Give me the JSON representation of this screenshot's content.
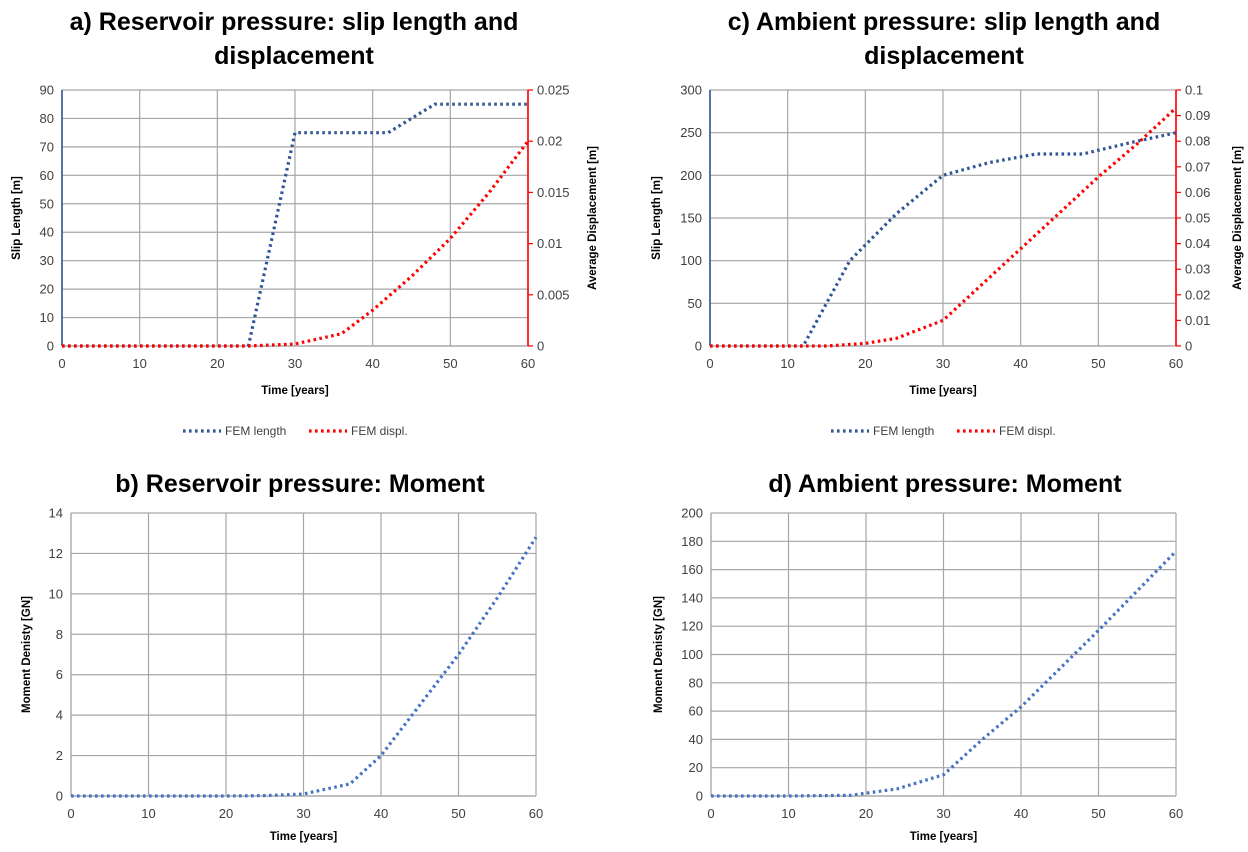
{
  "chart_data": [
    {
      "id": "a",
      "type": "line",
      "title_lines": [
        "a) Reservoir pressure:  slip length and",
        "displacement"
      ],
      "xlabel": "Time [years]",
      "ylabel": "Slip Length [m]",
      "y2label": "Average  Displacement [m]",
      "xlim": [
        0,
        60
      ],
      "ylim": [
        0,
        90
      ],
      "y2lim": [
        0,
        0.025
      ],
      "xticks": [
        "0",
        "10",
        "20",
        "30",
        "40",
        "50",
        "60"
      ],
      "yticks": [
        "0",
        "10",
        "20",
        "30",
        "40",
        "50",
        "60",
        "70",
        "80",
        "90"
      ],
      "y2ticks": [
        "0",
        "0.005",
        "0.01",
        "0.015",
        "0.02",
        "0.025"
      ],
      "grid": true,
      "legend_position": "bottom",
      "series": [
        {
          "name": "FEM length",
          "axis": "left",
          "color": "#2f5597",
          "x": [
            0,
            10,
            20,
            24,
            30,
            36,
            42,
            48,
            54,
            60
          ],
          "y": [
            0,
            0,
            0,
            0,
            75,
            75,
            75,
            85,
            85,
            85
          ]
        },
        {
          "name": "FEM displ.",
          "axis": "right",
          "color": "#ff0000",
          "x": [
            0,
            10,
            20,
            24,
            30,
            36,
            40,
            45,
            50,
            55,
            60
          ],
          "y": [
            0,
            0,
            0,
            0,
            0.0002,
            0.0012,
            0.0035,
            0.0068,
            0.0105,
            0.015,
            0.02
          ]
        }
      ]
    },
    {
      "id": "c",
      "type": "line",
      "title_lines": [
        "c) Ambient pressure: slip length and",
        "displacement"
      ],
      "xlabel": "Time [years]",
      "ylabel": "Slip Length [m]",
      "y2label": "Average  Displacement [m]",
      "xlim": [
        0,
        60
      ],
      "ylim": [
        0,
        300
      ],
      "y2lim": [
        0,
        0.1
      ],
      "xticks": [
        "0",
        "10",
        "20",
        "30",
        "40",
        "50",
        "60"
      ],
      "yticks": [
        "0",
        "50",
        "100",
        "150",
        "200",
        "250",
        "300"
      ],
      "y2ticks": [
        "0",
        "0.01",
        "0.02",
        "0.03",
        "0.04",
        "0.05",
        "0.06",
        "0.07",
        "0.08",
        "0.09",
        "0.1"
      ],
      "grid": true,
      "legend_position": "bottom",
      "series": [
        {
          "name": "FEM length",
          "axis": "left",
          "color": "#2f5597",
          "x": [
            0,
            6,
            12,
            18,
            24,
            30,
            36,
            42,
            48,
            54,
            60
          ],
          "y": [
            0,
            0,
            0,
            100,
            155,
            200,
            215,
            225,
            225,
            238,
            250
          ]
        },
        {
          "name": "FEM displ.",
          "axis": "right",
          "color": "#ff0000",
          "x": [
            0,
            10,
            15,
            20,
            24,
            30,
            35,
            40,
            45,
            50,
            55,
            60
          ],
          "y": [
            0,
            0,
            0,
            0.001,
            0.003,
            0.01,
            0.024,
            0.038,
            0.052,
            0.066,
            0.079,
            0.093
          ]
        }
      ]
    },
    {
      "id": "b",
      "type": "line",
      "title_lines": [
        "b)  Reservoir pressure: Moment"
      ],
      "xlabel": "Time [years]",
      "ylabel": "Moment Denisty [GN]",
      "xlim": [
        0,
        60
      ],
      "ylim": [
        0,
        14
      ],
      "xticks": [
        "0",
        "10",
        "20",
        "30",
        "40",
        "50",
        "60"
      ],
      "yticks": [
        "0",
        "2",
        "4",
        "6",
        "8",
        "10",
        "12",
        "14"
      ],
      "grid": true,
      "series": [
        {
          "color": "#4472c4",
          "x": [
            0,
            10,
            20,
            25,
            30,
            36,
            40,
            45,
            50,
            55,
            60
          ],
          "y": [
            0,
            0,
            0,
            0.02,
            0.1,
            0.6,
            2,
            4.5,
            7,
            9.8,
            12.8
          ]
        }
      ]
    },
    {
      "id": "d",
      "type": "line",
      "title_lines": [
        "d) Ambient pressure: Moment"
      ],
      "xlabel": "Time [years]",
      "ylabel": "Moment Denisty [GN]",
      "xlim": [
        0,
        60
      ],
      "ylim": [
        0,
        200
      ],
      "xticks": [
        "0",
        "10",
        "20",
        "30",
        "40",
        "50",
        "60"
      ],
      "yticks": [
        "0",
        "20",
        "40",
        "60",
        "80",
        "100",
        "120",
        "140",
        "160",
        "180",
        "200"
      ],
      "grid": true,
      "series": [
        {
          "color": "#4472c4",
          "x": [
            0,
            10,
            18,
            24,
            30,
            35,
            40,
            45,
            50,
            55,
            60
          ],
          "y": [
            0,
            0,
            0.5,
            5,
            15,
            40,
            63,
            90,
            117,
            145,
            173
          ]
        }
      ]
    }
  ]
}
